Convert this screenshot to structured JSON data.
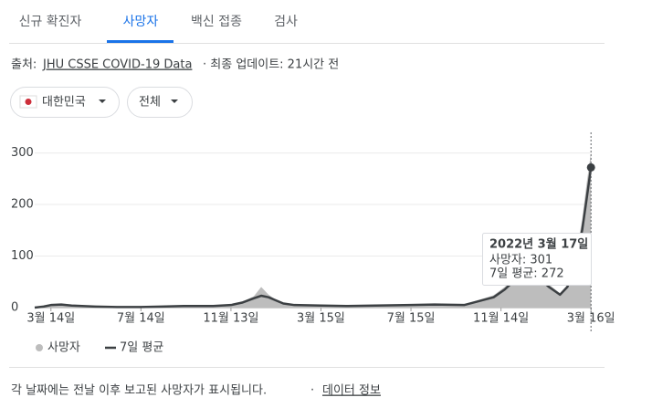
{
  "tabs": [
    "신규 확진자",
    "사망자",
    "백신 접종",
    "검사"
  ],
  "source": {
    "prefix": "출처:",
    "link": "JHU CSSE COVID-19 Data",
    "suffix": "· 최종 업데이트: 21시간 전"
  },
  "filters": [
    "대한민국",
    "전체"
  ],
  "chart_data": {
    "type": "line",
    "x": [
      -22,
      -10,
      0,
      14,
      28,
      60,
      90,
      122,
      150,
      180,
      200,
      220,
      244,
      260,
      275,
      285,
      295,
      305,
      315,
      330,
      366,
      400,
      440,
      488,
      520,
      560,
      600,
      615,
      630,
      645,
      660,
      675,
      690,
      700,
      710,
      720,
      726,
      732
    ],
    "series": [
      {
        "name": "사망자",
        "color": "#bdbdbd",
        "values": [
          0,
          3,
          7,
          5,
          4,
          2,
          1,
          1,
          2,
          4,
          3,
          4,
          6,
          12,
          22,
          40,
          25,
          15,
          9,
          6,
          5,
          3,
          5,
          6,
          7,
          6,
          24,
          40,
          60,
          75,
          63,
          45,
          28,
          44,
          90,
          170,
          240,
          301
        ]
      },
      {
        "name": "7일 평균",
        "color": "#3c4043",
        "values": [
          0,
          2,
          5,
          6,
          4,
          2,
          1,
          1,
          2,
          3,
          3,
          3,
          5,
          10,
          18,
          23,
          20,
          14,
          8,
          5,
          4,
          3,
          4,
          5,
          6,
          5,
          20,
          35,
          55,
          70,
          60,
          40,
          25,
          40,
          80,
          150,
          210,
          272
        ]
      }
    ],
    "xlim": [
      -22,
      733
    ],
    "xticks": [
      {
        "value": 0,
        "label": "3월 14일"
      },
      {
        "value": 122,
        "label": "7월 14일"
      },
      {
        "value": 244,
        "label": "11월 13일"
      },
      {
        "value": 366,
        "label": "3월 15일"
      },
      {
        "value": 488,
        "label": "7월 15일"
      },
      {
        "value": 610,
        "label": "11월 14일"
      },
      {
        "value": 732,
        "label": "3월 16일"
      }
    ],
    "ylim": [
      0,
      340
    ],
    "yticks": [
      0,
      100,
      200,
      300
    ],
    "grid": true,
    "tooltip": {
      "title": "2022년 3월 17일",
      "lines": [
        "사망자: 301",
        "7일 평균: 272"
      ]
    }
  },
  "footer": {
    "note": "각 날짜에는 전날 이후 보고된 사망자가 표시됩니다.",
    "link": "데이터 정보"
  }
}
